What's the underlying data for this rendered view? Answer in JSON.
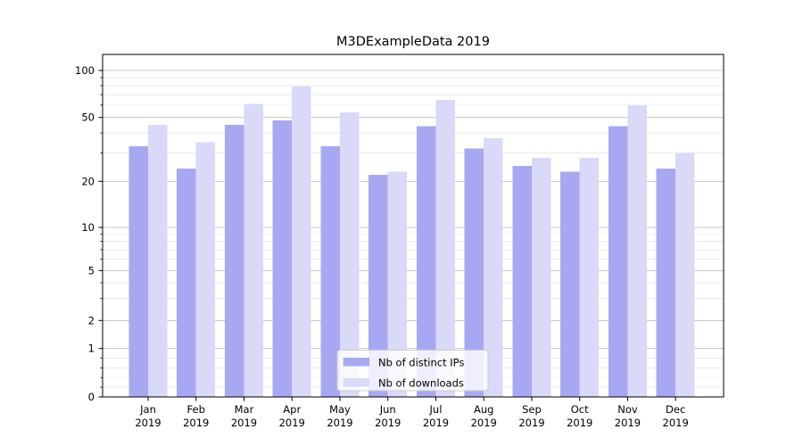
{
  "chart_data": {
    "type": "bar",
    "title": "M3DExampleData 2019",
    "categories": [
      "Jan 2019",
      "Feb 2019",
      "Mar 2019",
      "Apr 2019",
      "May 2019",
      "Jun 2019",
      "Jul 2019",
      "Aug 2019",
      "Sep 2019",
      "Oct 2019",
      "Nov 2019",
      "Dec 2019"
    ],
    "series": [
      {
        "name": "Nb of distinct IPs",
        "color": "#a8a8f2",
        "values": [
          33,
          24,
          45,
          48,
          33,
          22,
          44,
          32,
          25,
          23,
          44,
          24
        ]
      },
      {
        "name": "Nb of downloads",
        "color": "#d9d9f8",
        "values": [
          45,
          35,
          61,
          79,
          54,
          23,
          65,
          37,
          28,
          28,
          60,
          30
        ]
      }
    ],
    "xlabel": "",
    "ylabel": "",
    "y_scale": "symlog",
    "y_major_ticks": [
      0,
      1,
      2,
      5,
      10,
      20,
      50,
      100
    ],
    "y_minor_ticks": [
      0.2,
      0.4,
      0.6,
      0.8,
      3,
      4,
      6,
      7,
      8,
      9,
      30,
      40,
      60,
      70,
      80,
      90
    ],
    "ylim": [
      0,
      120
    ],
    "grid": "on",
    "legend_position": "lower center",
    "colors": {
      "major_grid": "#c9c9c9",
      "minor_grid": "#eaeaea",
      "spine": "#000000",
      "legend_border": "#cccccc",
      "legend_bg": "rgba(255,255,255,0.8)"
    }
  }
}
